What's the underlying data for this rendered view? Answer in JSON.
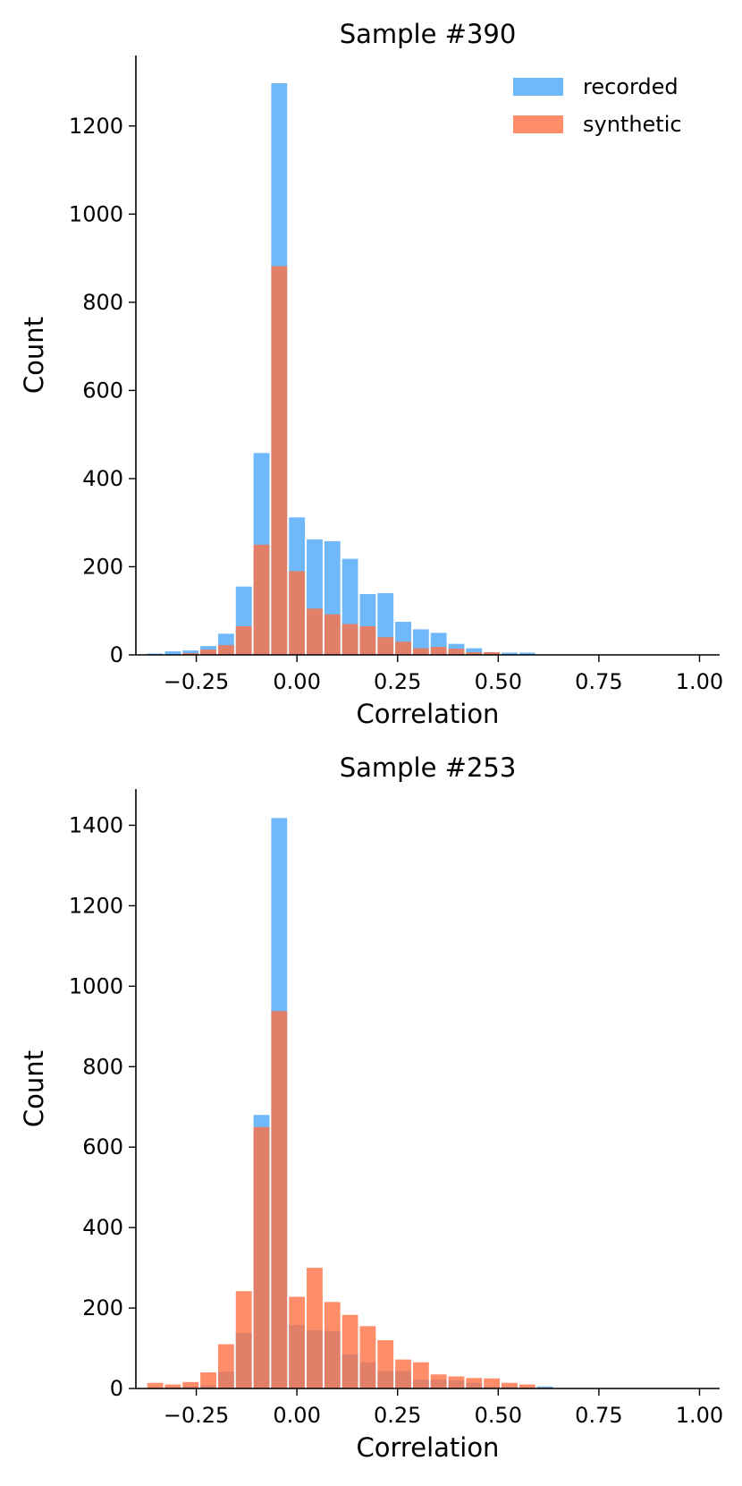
{
  "chart_data": [
    {
      "type": "bar",
      "title": "Sample #390",
      "xlabel": "Correlation",
      "ylabel": "Count",
      "xlim": [
        -0.4,
        1.05
      ],
      "ylim": [
        0,
        1360
      ],
      "xticks": [
        -0.25,
        0.0,
        0.25,
        0.5,
        0.75,
        1.0
      ],
      "xtick_labels": [
        "−0.25",
        "0.00",
        "0.25",
        "0.50",
        "0.75",
        "1.00"
      ],
      "yticks": [
        0,
        200,
        400,
        600,
        800,
        1000,
        1200
      ],
      "ytick_labels": [
        "0",
        "200",
        "400",
        "600",
        "800",
        "1000",
        "1200"
      ],
      "legend": {
        "position": "top-right",
        "entries": [
          "recorded",
          "synthetic"
        ]
      },
      "bin_width": 0.044,
      "bin_centers": [
        -0.352,
        -0.308,
        -0.264,
        -0.22,
        -0.176,
        -0.132,
        -0.088,
        -0.044,
        0.0,
        0.044,
        0.088,
        0.132,
        0.176,
        0.22,
        0.264,
        0.308,
        0.352,
        0.396,
        0.44,
        0.484,
        0.528,
        0.572,
        0.616,
        0.66,
        0.704,
        0.748,
        0.792,
        0.836,
        0.88,
        0.924,
        0.968
      ],
      "series": [
        {
          "name": "recorded",
          "color": "#4ba6f7",
          "values": [
            3,
            8,
            10,
            20,
            48,
            155,
            458,
            1297,
            312,
            262,
            258,
            218,
            138,
            140,
            75,
            58,
            50,
            25,
            15,
            6,
            5,
            5,
            1,
            0,
            0,
            0,
            0,
            0,
            0,
            0,
            1
          ]
        },
        {
          "name": "synthetic",
          "color": "#ff7043",
          "values": [
            0,
            1,
            4,
            12,
            22,
            65,
            250,
            882,
            190,
            105,
            92,
            70,
            65,
            40,
            30,
            15,
            18,
            14,
            6,
            6,
            0,
            0,
            0,
            0,
            0,
            0,
            0,
            0,
            0,
            0,
            0
          ]
        }
      ]
    },
    {
      "type": "bar",
      "title": "Sample #253",
      "xlabel": "Correlation",
      "ylabel": "Count",
      "xlim": [
        -0.4,
        1.05
      ],
      "ylim": [
        0,
        1490
      ],
      "xticks": [
        -0.25,
        0.0,
        0.25,
        0.5,
        0.75,
        1.0
      ],
      "xtick_labels": [
        "−0.25",
        "0.00",
        "0.25",
        "0.50",
        "0.75",
        "1.00"
      ],
      "yticks": [
        0,
        200,
        400,
        600,
        800,
        1000,
        1200,
        1400
      ],
      "ytick_labels": [
        "0",
        "200",
        "400",
        "600",
        "800",
        "1000",
        "1200",
        "1400"
      ],
      "bin_width": 0.044,
      "bin_centers": [
        -0.352,
        -0.308,
        -0.264,
        -0.22,
        -0.176,
        -0.132,
        -0.088,
        -0.044,
        0.0,
        0.044,
        0.088,
        0.132,
        0.176,
        0.22,
        0.264,
        0.308,
        0.352,
        0.396,
        0.44,
        0.484,
        0.528,
        0.572,
        0.616,
        0.66,
        0.704,
        0.748,
        0.792,
        0.836,
        0.88,
        0.924,
        0.968
      ],
      "series": [
        {
          "name": "recorded",
          "color": "#4ba6f7",
          "values": [
            2,
            3,
            5,
            8,
            42,
            138,
            680,
            1418,
            158,
            145,
            143,
            85,
            65,
            43,
            43,
            22,
            22,
            20,
            14,
            5,
            5,
            2,
            5,
            0,
            0,
            0,
            0,
            0,
            0,
            0,
            0
          ]
        },
        {
          "name": "synthetic",
          "color": "#ff7043",
          "values": [
            14,
            10,
            16,
            40,
            110,
            242,
            650,
            938,
            228,
            300,
            215,
            183,
            155,
            120,
            72,
            65,
            35,
            30,
            26,
            25,
            14,
            10,
            2,
            0,
            0,
            0,
            0,
            0,
            0,
            0,
            0
          ]
        }
      ]
    }
  ]
}
